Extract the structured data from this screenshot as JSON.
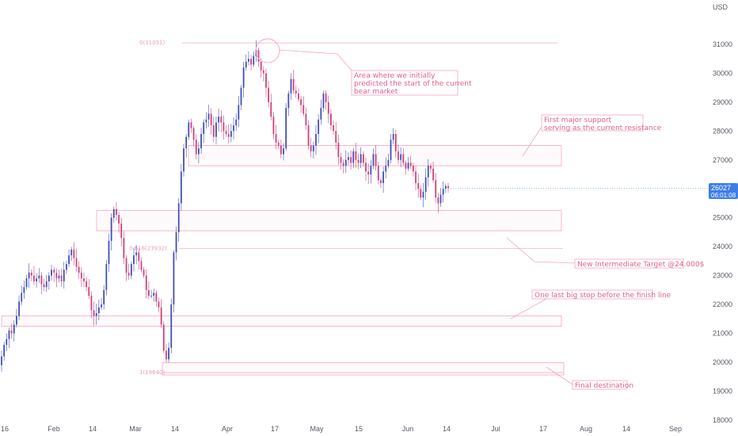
{
  "chart_data": {
    "type": "candlestick",
    "currency": "USD",
    "y_axis_ticks": [
      31000,
      30000,
      29000,
      28000,
      27000,
      26000,
      25000,
      24000,
      23000,
      22000,
      21000,
      20000,
      19000,
      18000
    ],
    "ylim": [
      18000,
      32000
    ],
    "x_axis_ticks": [
      "16",
      "Feb",
      "14",
      "Mar",
      "14",
      "Apr",
      "17",
      "May",
      "15",
      "Jun",
      "14",
      "Jul",
      "17",
      "Aug",
      "14",
      "Sep"
    ],
    "last_price": "26027",
    "countdown": "06:01:08",
    "series": [
      {
        "values": [
          20200,
          20600,
          20800,
          21100,
          21000,
          21300,
          21600,
          22100,
          22400,
          22600,
          22900,
          23100,
          23000,
          22800,
          22900,
          23000,
          22700,
          22600,
          22800,
          23000,
          23200,
          23100,
          22900,
          23000,
          22800,
          23200,
          23400,
          23700,
          23900,
          23600,
          23300,
          23100,
          22900,
          22800,
          22600,
          22300,
          21800,
          21600,
          21700,
          21900,
          22000,
          22500,
          23400,
          24200,
          25000,
          25300,
          25100,
          24800,
          24300,
          23600,
          23100,
          23000,
          23400,
          23700,
          23800,
          23500,
          23200,
          23000,
          22500,
          22300,
          22300,
          22400,
          22100,
          21900,
          21300,
          20400,
          20100,
          20500,
          22000,
          23800,
          24500,
          25500,
          26600,
          27400,
          27800,
          28300,
          28100,
          27700,
          27200,
          27400,
          27900,
          28300,
          28400,
          28600,
          28200,
          27800,
          28300,
          28500,
          28300,
          28000,
          27900,
          27800,
          28000,
          28200,
          28400,
          28900,
          29500,
          30200,
          30400,
          30500,
          30300,
          30600,
          30800,
          30400,
          30100,
          30000,
          29500,
          29000,
          28500,
          27900,
          27600,
          27500,
          27200,
          27400,
          28800,
          29300,
          29800,
          29400,
          29300,
          29100,
          28900,
          28600,
          28200,
          27500,
          27300,
          27500,
          27900,
          28400,
          28800,
          29300,
          29000,
          28600,
          28200,
          28000,
          27600,
          27100,
          26900,
          26800,
          27000,
          27100,
          26900,
          27300,
          27000,
          26900,
          27200,
          26900,
          26600,
          26500,
          26800,
          27200,
          26800,
          26300,
          26200,
          26600,
          26800,
          27000,
          27700,
          27900,
          27300,
          27000,
          27200,
          26900,
          26700,
          26900,
          26800,
          26600,
          26200,
          26000,
          25700,
          25900,
          26400,
          26800,
          26700,
          26300,
          25700,
          25500,
          25800,
          26000,
          26100,
          26027
        ]
      }
    ],
    "annotations": [
      {
        "text": "Area where we initially predicted the start of the current bear market",
        "lines": [
          "Area where we initially",
          "predicted the start of the current",
          "bear market"
        ]
      },
      {
        "text": "First major support serving as the current resistance",
        "lines": [
          "First major support",
          "serving as the current resistance"
        ]
      },
      {
        "text": "New Intermediate Target @24.000$",
        "lines": [
          "New Intermediate Target @24.000$"
        ]
      },
      {
        "text": "One last big stop before the finish line",
        "lines": [
          "One last big stop before the finish line"
        ]
      },
      {
        "text": "Final destination",
        "lines": [
          "Final destination"
        ]
      }
    ],
    "fib_levels": [
      {
        "label": "0(31051)",
        "price": 31051
      },
      {
        "label": "0.618(23932)",
        "price": 23932
      },
      {
        "label": "1(19640)",
        "price": 19640
      }
    ],
    "zones": [
      {
        "from": 26800,
        "to": 27500
      },
      {
        "from": 24550,
        "to": 25250
      },
      {
        "from": 21250,
        "to": 21600
      },
      {
        "from": 19560,
        "to": 19980
      }
    ],
    "colors": {
      "up": "#3f4fb8",
      "down": "#d0407a",
      "accent": "#e06090",
      "price_label_bg": "#3d7ee8"
    }
  }
}
